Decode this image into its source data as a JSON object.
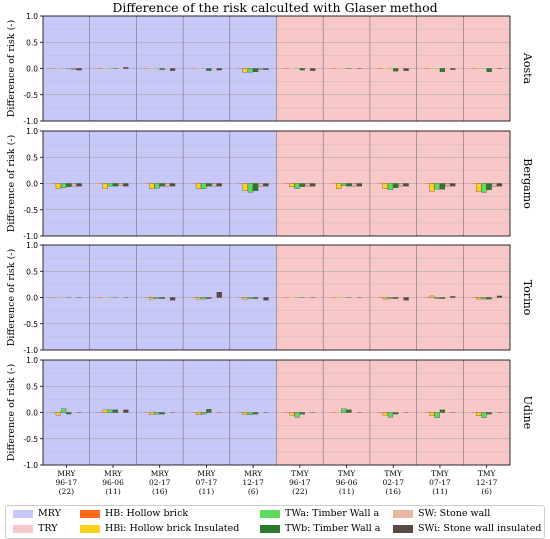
{
  "chart_data": {
    "type": "bar",
    "title": "Difference of the risk calculted with Glaser method",
    "ylabel": "Difference of risk (-)",
    "ylim": [
      -1.0,
      1.0
    ],
    "yticks": [
      "-1.0",
      "-0.5",
      "0.0",
      "0.5",
      "1.0"
    ],
    "grid": true,
    "categories": [
      [
        "MRY",
        "96-17",
        "(22)"
      ],
      [
        "MRY",
        "96-06",
        "(11)"
      ],
      [
        "MRY",
        "02-17",
        "(16)"
      ],
      [
        "MRY",
        "07-17",
        "(11)"
      ],
      [
        "MRY",
        "12-17",
        "(6)"
      ],
      [
        "TMY",
        "96-17",
        "(22)"
      ],
      [
        "TMY",
        "96-06",
        "(11)"
      ],
      [
        "TMY",
        "02-17",
        "(16)"
      ],
      [
        "TMY",
        "07-17",
        "(11)"
      ],
      [
        "TMY",
        "12-17",
        "(6)"
      ]
    ],
    "background_groups": [
      {
        "name": "MRY",
        "color": "#c8c8f8",
        "categories": [
          0,
          1,
          2,
          3,
          4
        ]
      },
      {
        "name": "TRY",
        "color": "#f8c8c8",
        "categories": [
          5,
          6,
          7,
          8,
          9
        ]
      }
    ],
    "series_meta": [
      {
        "key": "HB",
        "name": "HB: Hollow brick",
        "color": "#ff6a1a"
      },
      {
        "key": "HBi",
        "name": "HBi: Hollow brick Insulated",
        "color": "#ffd21a"
      },
      {
        "key": "TWa",
        "name": "TWa: Timber Wall a",
        "color": "#5ddc5d"
      },
      {
        "key": "TWb",
        "name": "TWb: Timber Wall a",
        "color": "#2c7a2c"
      },
      {
        "key": "SW",
        "name": "SW: Stone wall",
        "color": "#e8b8a0"
      },
      {
        "key": "SWi",
        "name": "SWi: Stone wall insulated",
        "color": "#5a4a45"
      }
    ],
    "panels": [
      {
        "name": "Aosta",
        "values": [
          [
            0,
            0,
            0,
            0,
            -0.02,
            -0.03
          ],
          [
            0,
            0,
            0,
            0.01,
            -0.01,
            0.02
          ],
          [
            0,
            0,
            0,
            -0.02,
            -0.01,
            -0.04
          ],
          [
            0,
            0,
            0,
            -0.04,
            -0.01,
            -0.03
          ],
          [
            0,
            -0.07,
            -0.07,
            -0.06,
            -0.02,
            -0.02
          ],
          [
            0,
            0,
            0,
            -0.03,
            -0.01,
            -0.04
          ],
          [
            0,
            0,
            0,
            -0.01,
            0,
            -0.01
          ],
          [
            0,
            0,
            0,
            -0.05,
            -0.01,
            -0.04
          ],
          [
            0,
            0,
            0,
            -0.06,
            -0.01,
            -0.02
          ],
          [
            0,
            0,
            0,
            -0.06,
            -0.01,
            -0.01
          ]
        ]
      },
      {
        "name": "Bergamo",
        "values": [
          [
            0,
            -0.1,
            -0.08,
            -0.06,
            -0.05,
            -0.05
          ],
          [
            0,
            -0.1,
            -0.05,
            -0.05,
            -0.04,
            -0.05
          ],
          [
            0,
            -0.1,
            -0.09,
            -0.05,
            -0.05,
            -0.05
          ],
          [
            0,
            -0.1,
            -0.1,
            -0.05,
            -0.05,
            -0.05
          ],
          [
            0,
            -0.14,
            -0.17,
            -0.14,
            -0.05,
            -0.05
          ],
          [
            0,
            -0.06,
            -0.1,
            -0.06,
            -0.05,
            -0.05
          ],
          [
            0,
            -0.1,
            -0.04,
            -0.05,
            -0.05,
            -0.05
          ],
          [
            0,
            -0.1,
            -0.12,
            -0.08,
            -0.05,
            -0.05
          ],
          [
            0,
            -0.15,
            -0.11,
            -0.11,
            -0.05,
            -0.05
          ],
          [
            0,
            -0.15,
            -0.17,
            -0.12,
            -0.05,
            -0.05
          ]
        ]
      },
      {
        "name": "Torino",
        "values": [
          [
            0,
            0,
            0,
            0,
            0,
            0
          ],
          [
            0,
            0,
            0,
            0,
            0,
            0
          ],
          [
            0,
            -0.03,
            -0.02,
            -0.02,
            -0.01,
            -0.05
          ],
          [
            0,
            -0.03,
            -0.03,
            -0.02,
            -0.01,
            0.1
          ],
          [
            0,
            -0.03,
            -0.02,
            -0.02,
            -0.01,
            -0.05
          ],
          [
            0,
            0,
            0,
            0,
            0,
            0
          ],
          [
            0,
            0,
            0,
            0,
            0,
            0
          ],
          [
            0,
            -0.03,
            -0.02,
            -0.02,
            -0.01,
            -0.05
          ],
          [
            0,
            0.03,
            -0.02,
            -0.02,
            -0.01,
            0.02
          ],
          [
            0,
            -0.03,
            -0.03,
            -0.03,
            -0.01,
            0.03
          ]
        ]
      },
      {
        "name": "Udine",
        "values": [
          [
            0,
            -0.05,
            0.07,
            -0.03,
            -0.01,
            0
          ],
          [
            0,
            0.05,
            0.05,
            0.05,
            -0.01,
            0.05
          ],
          [
            0,
            -0.04,
            -0.03,
            -0.03,
            -0.01,
            0
          ],
          [
            0,
            -0.04,
            -0.03,
            0.06,
            -0.01,
            0
          ],
          [
            0,
            -0.04,
            -0.04,
            -0.03,
            -0.01,
            0
          ],
          [
            0,
            -0.05,
            -0.09,
            -0.03,
            -0.01,
            0
          ],
          [
            0,
            0,
            0.07,
            0.05,
            -0.01,
            0
          ],
          [
            0,
            -0.05,
            -0.09,
            -0.03,
            -0.01,
            0
          ],
          [
            0,
            -0.06,
            -0.1,
            0.05,
            -0.01,
            0
          ],
          [
            0,
            -0.06,
            -0.1,
            -0.03,
            -0.01,
            0
          ]
        ]
      }
    ]
  },
  "legend": {
    "items": [
      {
        "label": "MRY",
        "color": "#c8c8f8"
      },
      {
        "label": "TRY",
        "color": "#f8c8c8"
      },
      {
        "label": "HB: Hollow brick",
        "color": "#ff6a1a"
      },
      {
        "label": "HBi: Hollow brick Insulated",
        "color": "#ffd21a"
      },
      {
        "label": "TWa: Timber Wall a",
        "color": "#5ddc5d"
      },
      {
        "label": "TWb: Timber Wall a",
        "color": "#2c7a2c"
      },
      {
        "label": "SW: Stone wall",
        "color": "#e8b8a0"
      },
      {
        "label": "SWi: Stone wall insulated",
        "color": "#5a4a45"
      }
    ]
  }
}
